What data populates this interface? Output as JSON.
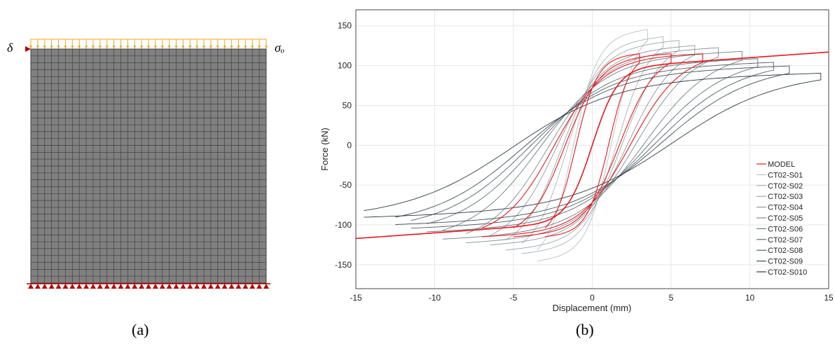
{
  "panel_a": {
    "caption": "(a)",
    "displacement_symbol": "δ",
    "stress_symbol": "σₒ",
    "mesh": {
      "columns": 34,
      "rows": 34
    }
  },
  "panel_b": {
    "caption": "(b)"
  },
  "colors": {
    "mesh_fill": "#808080",
    "mesh_line": "#404040",
    "load_arrows": "#f5a623",
    "supports": "#b50000",
    "model": "#e6191e",
    "tests": [
      "#b9c2c6",
      "#aab4b8",
      "#9aa6ab",
      "#8c9aa0",
      "#7f8e94",
      "#6d7e84",
      "#5d6e74",
      "#4e5f65",
      "#3f5056",
      "#2d3a3f"
    ]
  },
  "chart_data": {
    "type": "line",
    "title": "",
    "xlabel": "Displacement (mm)",
    "ylabel": "Force (kN)",
    "xlim": [
      -15,
      15
    ],
    "ylim": [
      -180,
      170
    ],
    "xticks": [
      -15,
      -10,
      -5,
      0,
      5,
      10,
      15
    ],
    "yticks": [
      -150,
      -100,
      -50,
      0,
      50,
      100,
      150
    ],
    "grid": true,
    "legend_position": "right",
    "series": [
      {
        "name": "MODEL",
        "amp": 15,
        "fmax": 117,
        "kind": "model"
      },
      {
        "name": "CT02-S01",
        "amp": 3.5,
        "fmax": 150,
        "kind": "test"
      },
      {
        "name": "CT02-S02",
        "amp": 4.5,
        "fmax": 140,
        "kind": "test"
      },
      {
        "name": "CT02-S03",
        "amp": 5.5,
        "fmax": 135,
        "kind": "test"
      },
      {
        "name": "CT02-S04",
        "amp": 6.5,
        "fmax": 128,
        "kind": "test"
      },
      {
        "name": "CT02-S05",
        "amp": 8,
        "fmax": 125,
        "kind": "test"
      },
      {
        "name": "CT02-S06",
        "amp": 9.5,
        "fmax": 120,
        "kind": "test"
      },
      {
        "name": "CT02-S07",
        "amp": 10.5,
        "fmax": 110,
        "kind": "test"
      },
      {
        "name": "CT02-S08",
        "amp": 11.5,
        "fmax": 105,
        "kind": "test"
      },
      {
        "name": "CT02-S09",
        "amp": 12.5,
        "fmax": 100,
        "kind": "test"
      },
      {
        "name": "CT02-S010",
        "amp": 14.5,
        "fmax": 90,
        "kind": "test"
      }
    ]
  }
}
